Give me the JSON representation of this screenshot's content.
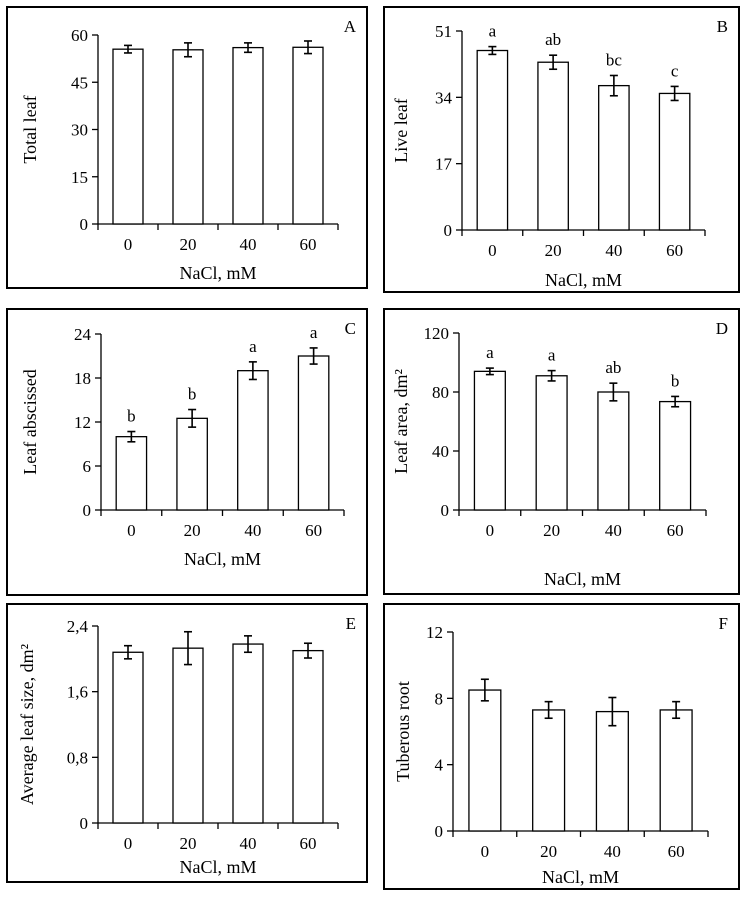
{
  "chart_data": [
    {
      "type": "bar",
      "panel_letter": "A",
      "xlabel": "NaCl, mM",
      "ylabel": "Total leaf",
      "categories": [
        "0",
        "20",
        "40",
        "60"
      ],
      "values": [
        55.5,
        55.3,
        56.0,
        56.1
      ],
      "errors": [
        1.2,
        2.2,
        1.5,
        2.0
      ],
      "significance": [],
      "ylim": [
        0,
        60
      ],
      "yticks": [
        "0",
        "15",
        "30",
        "45",
        "60"
      ],
      "grid": false
    },
    {
      "type": "bar",
      "panel_letter": "B",
      "xlabel": "NaCl, mM",
      "ylabel": "Live leaf",
      "categories": [
        "0",
        "20",
        "40",
        "60"
      ],
      "values": [
        46.0,
        43.0,
        37.0,
        35.0
      ],
      "errors": [
        1.0,
        1.8,
        2.6,
        1.8
      ],
      "significance": [
        "a",
        "ab",
        "bc",
        "c"
      ],
      "ylim": [
        0,
        51
      ],
      "yticks": [
        "0",
        "17",
        "34",
        "51"
      ],
      "grid": false
    },
    {
      "type": "bar",
      "panel_letter": "C",
      "xlabel": "NaCl, mM",
      "ylabel": "Leaf abscissed",
      "categories": [
        "0",
        "20",
        "40",
        "60"
      ],
      "values": [
        10.0,
        12.5,
        19.0,
        21.0
      ],
      "errors": [
        0.7,
        1.2,
        1.2,
        1.1
      ],
      "significance": [
        "b",
        "b",
        "a",
        "a"
      ],
      "ylim": [
        0,
        24
      ],
      "yticks": [
        "0",
        "6",
        "12",
        "18",
        "24"
      ],
      "grid": false
    },
    {
      "type": "bar",
      "panel_letter": "D",
      "xlabel": "NaCl, mM",
      "ylabel": "Leaf area, dm²",
      "categories": [
        "0",
        "20",
        "40",
        "60"
      ],
      "values": [
        94.0,
        91.0,
        80.0,
        73.5
      ],
      "errors": [
        2.2,
        3.5,
        6.0,
        3.5
      ],
      "significance": [
        "a",
        "a",
        "ab",
        "b"
      ],
      "ylim": [
        0,
        120
      ],
      "yticks": [
        "0",
        "40",
        "80",
        "120"
      ],
      "grid": false
    },
    {
      "type": "bar",
      "panel_letter": "E",
      "xlabel": "NaCl, mM",
      "ylabel": "Average leaf size, dm²",
      "categories": [
        "0",
        "20",
        "40",
        "60"
      ],
      "values": [
        2.08,
        2.13,
        2.18,
        2.1
      ],
      "errors": [
        0.08,
        0.2,
        0.1,
        0.09
      ],
      "significance": [],
      "ylim": [
        0,
        2.4
      ],
      "yticks": [
        "0",
        "0,8",
        "1,6",
        "2,4"
      ],
      "grid": false
    },
    {
      "type": "bar",
      "panel_letter": "F",
      "xlabel": "NaCl, mM",
      "ylabel": "Tuberous root",
      "categories": [
        "0",
        "20",
        "40",
        "60"
      ],
      "values": [
        8.5,
        7.3,
        7.2,
        7.3
      ],
      "errors": [
        0.65,
        0.5,
        0.85,
        0.5
      ],
      "significance": [],
      "ylim": [
        0,
        12
      ],
      "yticks": [
        "0",
        "4",
        "8",
        "12"
      ],
      "grid": false
    }
  ]
}
